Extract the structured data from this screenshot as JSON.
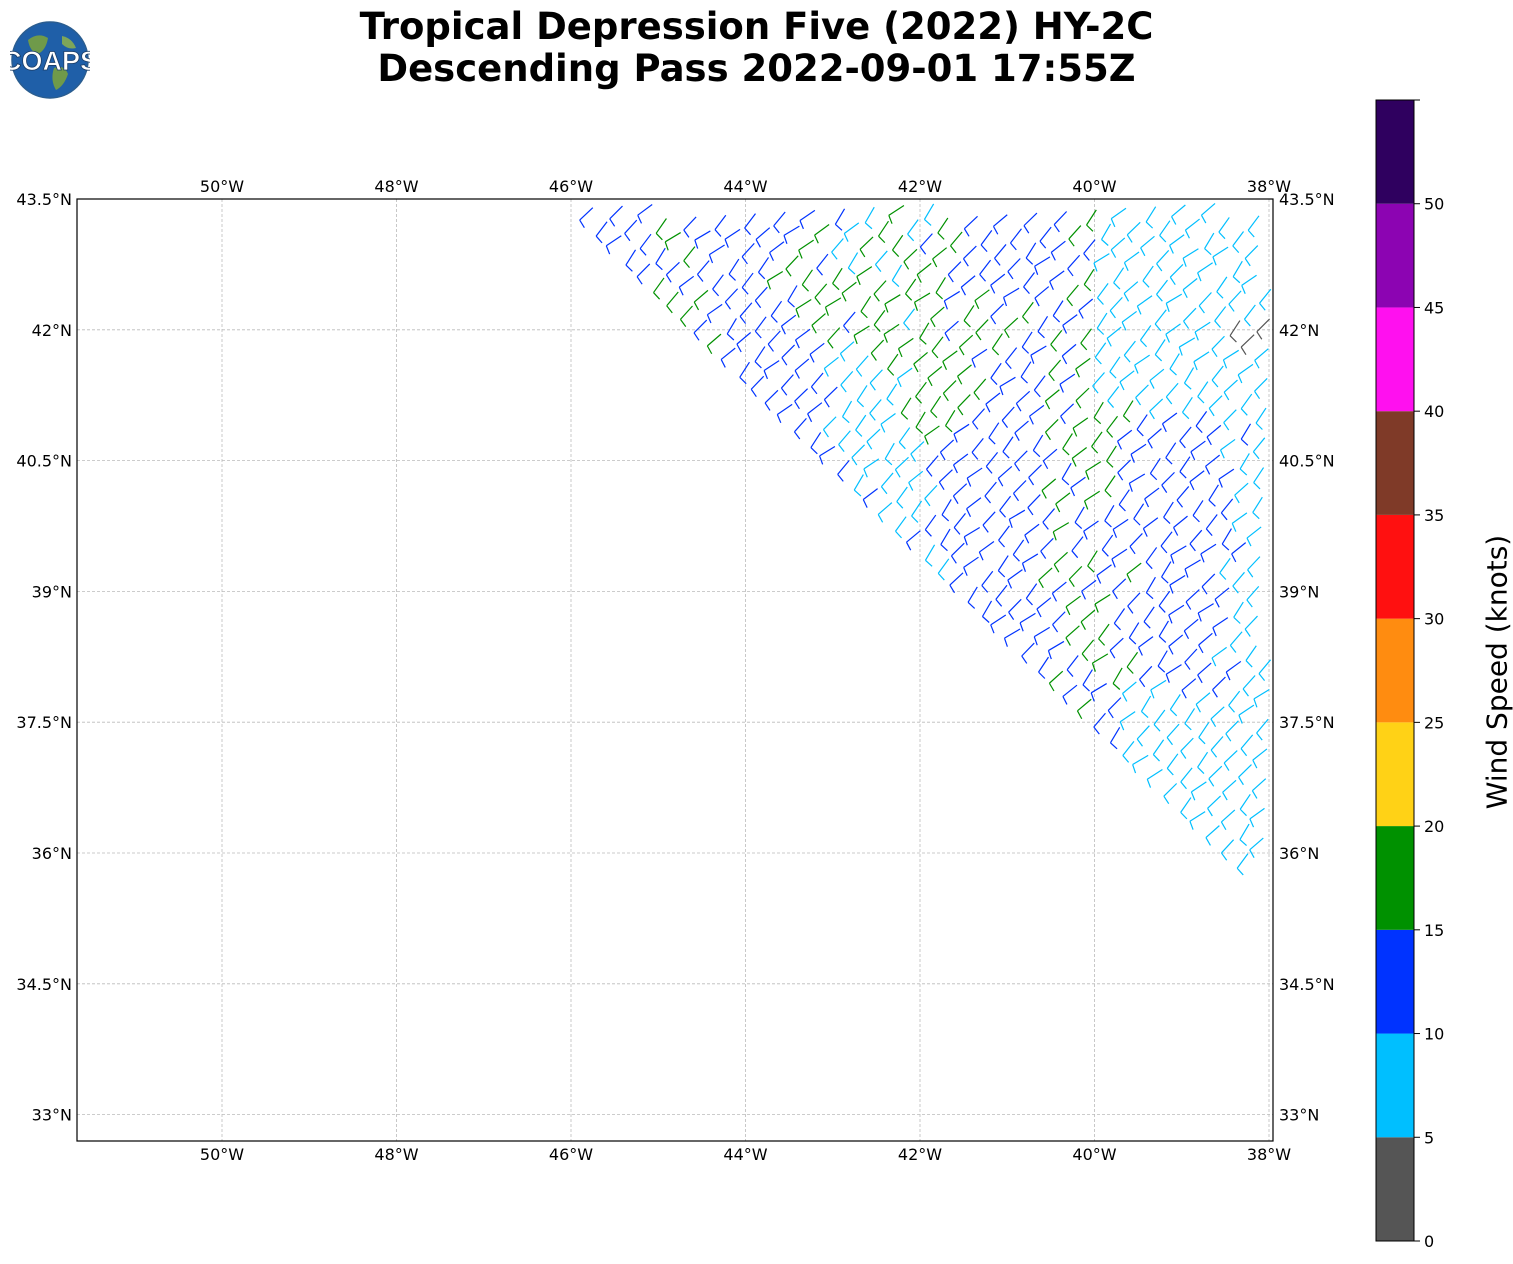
{
  "title": {
    "line1": "Tropical Depression Five (2022) HY-2C",
    "line2": "Descending Pass 2022-09-01 17:55Z"
  },
  "logo": {
    "text": "COAPS",
    "icon": "globe-logo-icon"
  },
  "map": {
    "lon_ticks": [
      {
        "value": -50,
        "label": "50°W"
      },
      {
        "value": -48,
        "label": "48°W"
      },
      {
        "value": -46,
        "label": "46°W"
      },
      {
        "value": -44,
        "label": "44°W"
      },
      {
        "value": -42,
        "label": "42°W"
      },
      {
        "value": -40,
        "label": "40°W"
      },
      {
        "value": -38,
        "label": "38°W"
      }
    ],
    "lat_ticks": [
      {
        "value": 43.5,
        "label": "43.5°N"
      },
      {
        "value": 42,
        "label": "42°N"
      },
      {
        "value": 40.5,
        "label": "40.5°N"
      },
      {
        "value": 39,
        "label": "39°N"
      },
      {
        "value": 37.5,
        "label": "37.5°N"
      },
      {
        "value": 36,
        "label": "36°N"
      },
      {
        "value": 34.5,
        "label": "34.5°N"
      },
      {
        "value": 33,
        "label": "33°N"
      }
    ],
    "extent": {
      "lon_min": -51.65,
      "lon_max": -37.93,
      "lat_min": 32.7,
      "lat_max": 43.5
    },
    "swath_edge": {
      "west_start": [
        -45.75,
        43.4
      ],
      "west_end": [
        -38.2,
        35.95
      ]
    },
    "wind_barbs": "dense field of wind barbs inside the satellite swath, colored by speed"
  },
  "colorbar": {
    "label": "Wind Speed (knots)",
    "bins": [
      {
        "from": 0,
        "to": 5,
        "color": "#555555"
      },
      {
        "from": 5,
        "to": 10,
        "color": "#00bfff"
      },
      {
        "from": 10,
        "to": 15,
        "color": "#0033ff"
      },
      {
        "from": 15,
        "to": 20,
        "color": "#009100"
      },
      {
        "from": 20,
        "to": 25,
        "color": "#ffd216"
      },
      {
        "from": 25,
        "to": 30,
        "color": "#ff8c10"
      },
      {
        "from": 30,
        "to": 35,
        "color": "#ff1010"
      },
      {
        "from": 35,
        "to": 40,
        "color": "#7f3a28"
      },
      {
        "from": 40,
        "to": 45,
        "color": "#ff10ef"
      },
      {
        "from": 45,
        "to": 50,
        "color": "#8c04b2"
      },
      {
        "from": 50,
        "to": 55,
        "color": "#2f005f"
      }
    ],
    "tick_labels": [
      "0",
      "5",
      "10",
      "15",
      "20",
      "25",
      "30",
      "35",
      "40",
      "45",
      "50"
    ]
  }
}
